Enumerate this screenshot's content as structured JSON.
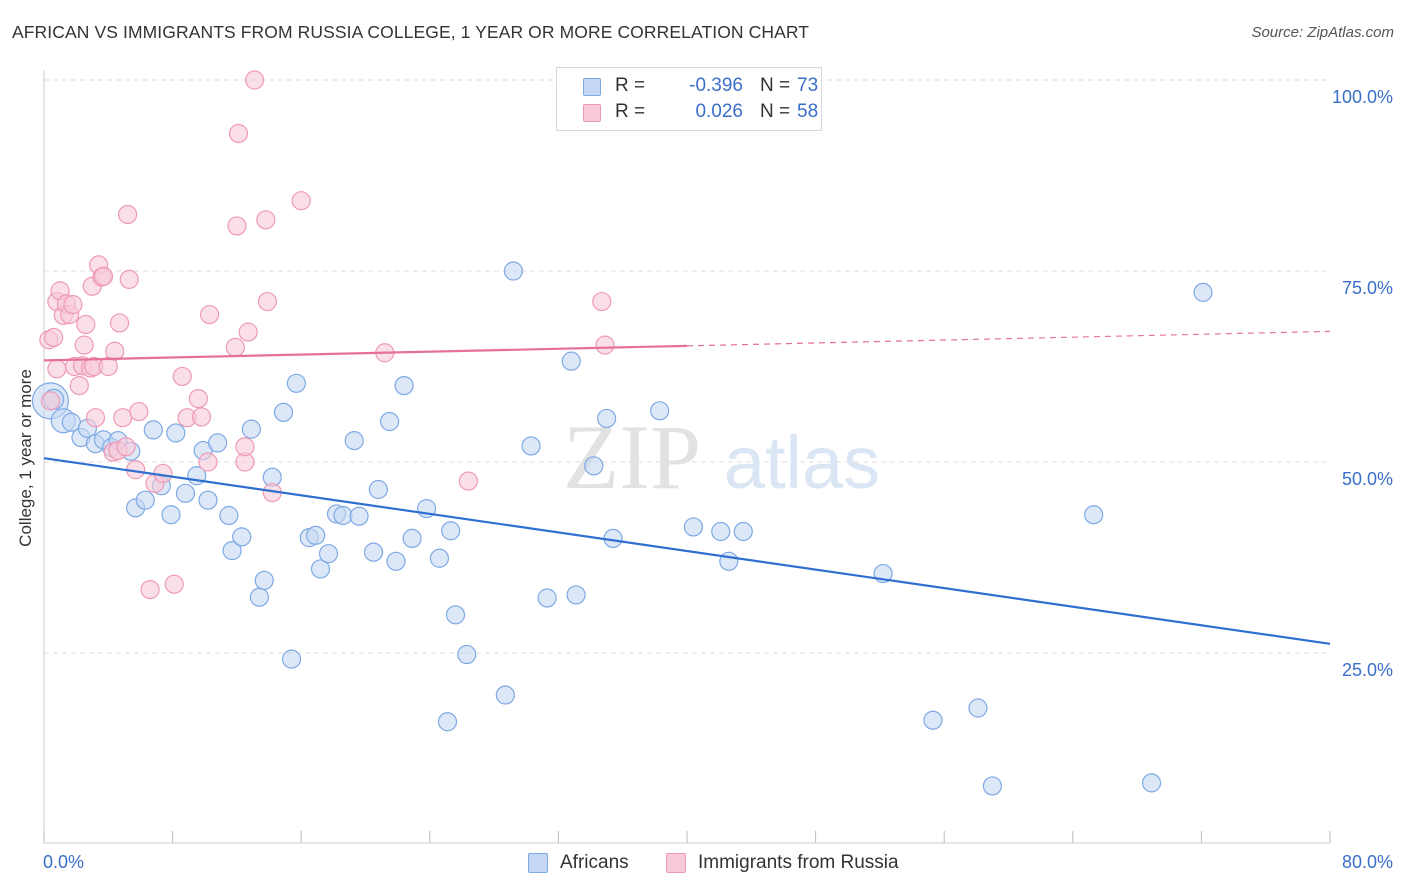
{
  "title": "AFRICAN VS IMMIGRANTS FROM RUSSIA COLLEGE, 1 YEAR OR MORE CORRELATION CHART",
  "source": "Source: ZipAtlas.com",
  "watermark": {
    "zip": "ZIP",
    "atlas": "atlas"
  },
  "legend": {
    "africans": {
      "r_label": "R =",
      "r_value": "-0.396",
      "n_label": "N =",
      "n_value": "73"
    },
    "russia": {
      "r_label": "R =",
      "r_value": "0.026",
      "n_label": "N =",
      "n_value": "58"
    }
  },
  "colors": {
    "africans_fill": "#c5d8f3",
    "africans_stroke": "#7ea9e4",
    "africans_line": "#2f6fd0",
    "russia_fill": "#f8cad9",
    "russia_stroke": "#ee9ab7",
    "russia_line": "#e5719a",
    "grid": "#dddddd",
    "tick_text": "#3a6fc9"
  },
  "chart_data": {
    "type": "scatter",
    "title": "AFRICAN VS IMMIGRANTS FROM RUSSIA COLLEGE, 1 YEAR OR MORE CORRELATION CHART",
    "xlabel": "",
    "ylabel": "College, 1 year or more",
    "xlim": [
      0,
      80
    ],
    "ylim": [
      0,
      104
    ],
    "x_ticks": [
      "0.0%",
      "80.0%"
    ],
    "y_ticks": [
      {
        "value": 25,
        "label": "25.0%"
      },
      {
        "value": 50,
        "label": "50.0%"
      },
      {
        "value": 75,
        "label": "75.0%"
      },
      {
        "value": 100,
        "label": "100.0%"
      }
    ],
    "grid": true,
    "legend_position": "top-center",
    "series": [
      {
        "name": "Africans",
        "r": -0.396,
        "n": 73,
        "trend": {
          "x": [
            0,
            80
          ],
          "y": [
            50.5,
            26.2
          ]
        },
        "points": [
          [
            0.4,
            58.0,
            18
          ],
          [
            0.6,
            58.2,
            10
          ],
          [
            1.2,
            55.4,
            12
          ],
          [
            1.7,
            55.2,
            9
          ],
          [
            2.3,
            53.2,
            9
          ],
          [
            2.7,
            54.4,
            9
          ],
          [
            3.2,
            52.4,
            9
          ],
          [
            3.7,
            52.9,
            9
          ],
          [
            4.2,
            51.9,
            9
          ],
          [
            4.6,
            52.8,
            9
          ],
          [
            5.4,
            51.4,
            9
          ],
          [
            5.7,
            44.0,
            9
          ],
          [
            6.3,
            45.0,
            9
          ],
          [
            6.8,
            54.2,
            9
          ],
          [
            7.3,
            46.9,
            9
          ],
          [
            7.9,
            43.1,
            9
          ],
          [
            8.2,
            53.8,
            9
          ],
          [
            8.8,
            45.9,
            9
          ],
          [
            9.5,
            48.2,
            9
          ],
          [
            9.9,
            51.5,
            9
          ],
          [
            10.2,
            45.0,
            9
          ],
          [
            10.8,
            52.5,
            9
          ],
          [
            11.5,
            43.0,
            9
          ],
          [
            11.7,
            38.4,
            9
          ],
          [
            12.3,
            40.2,
            9
          ],
          [
            12.9,
            54.3,
            9
          ],
          [
            13.4,
            32.3,
            9
          ],
          [
            13.7,
            34.5,
            9
          ],
          [
            14.2,
            48.0,
            9
          ],
          [
            14.9,
            56.5,
            9
          ],
          [
            15.4,
            24.2,
            9
          ],
          [
            15.7,
            60.3,
            9
          ],
          [
            16.5,
            40.1,
            9
          ],
          [
            16.9,
            40.4,
            9
          ],
          [
            17.2,
            36.0,
            9
          ],
          [
            17.7,
            38.0,
            9
          ],
          [
            18.2,
            43.2,
            9
          ],
          [
            18.6,
            43.0,
            9
          ],
          [
            19.3,
            52.8,
            9
          ],
          [
            19.6,
            42.9,
            9
          ],
          [
            20.5,
            38.2,
            9
          ],
          [
            20.8,
            46.4,
            9
          ],
          [
            21.5,
            55.3,
            9
          ],
          [
            21.9,
            37.0,
            9
          ],
          [
            22.4,
            60.0,
            9
          ],
          [
            22.9,
            40.0,
            9
          ],
          [
            23.8,
            43.9,
            9
          ],
          [
            24.6,
            37.4,
            9
          ],
          [
            25.1,
            16.0,
            9
          ],
          [
            25.3,
            41.0,
            9
          ],
          [
            25.6,
            30.0,
            9
          ],
          [
            26.3,
            24.8,
            9
          ],
          [
            28.7,
            19.5,
            9
          ],
          [
            29.2,
            75.0,
            9
          ],
          [
            30.3,
            52.1,
            9
          ],
          [
            31.3,
            32.2,
            9
          ],
          [
            32.8,
            63.2,
            9
          ],
          [
            33.1,
            32.6,
            9
          ],
          [
            34.2,
            49.5,
            9
          ],
          [
            35.0,
            55.7,
            9
          ],
          [
            35.4,
            40.0,
            9
          ],
          [
            38.3,
            56.7,
            9
          ],
          [
            40.4,
            41.5,
            9
          ],
          [
            42.1,
            40.9,
            9
          ],
          [
            42.6,
            37.0,
            9
          ],
          [
            43.5,
            40.9,
            9
          ],
          [
            52.2,
            35.4,
            9
          ],
          [
            55.3,
            16.2,
            9
          ],
          [
            58.1,
            17.8,
            9
          ],
          [
            59.0,
            7.6,
            9
          ],
          [
            65.3,
            43.1,
            9
          ],
          [
            68.9,
            8.0,
            9
          ],
          [
            72.1,
            72.2,
            9
          ]
        ]
      },
      {
        "name": "Immigrants from Russia",
        "r": 0.026,
        "n": 58,
        "trend": {
          "x": [
            0,
            40
          ],
          "y": [
            63.3,
            65.2
          ],
          "dashed_to": {
            "x": 80,
            "y": 67.1
          }
        },
        "points": [
          [
            0.3,
            66.0,
            9
          ],
          [
            0.4,
            58.0,
            9
          ],
          [
            0.6,
            66.3,
            9
          ],
          [
            0.8,
            62.2,
            9
          ],
          [
            0.8,
            71.0,
            9
          ],
          [
            1.0,
            72.4,
            9
          ],
          [
            1.2,
            69.2,
            9
          ],
          [
            1.4,
            70.7,
            9
          ],
          [
            1.6,
            69.3,
            9
          ],
          [
            1.8,
            70.6,
            9
          ],
          [
            1.9,
            62.5,
            9
          ],
          [
            2.2,
            60.0,
            9
          ],
          [
            2.4,
            62.6,
            9
          ],
          [
            2.5,
            65.3,
            9
          ],
          [
            2.6,
            68.0,
            9
          ],
          [
            2.9,
            62.3,
            9
          ],
          [
            3.0,
            73.0,
            9
          ],
          [
            3.1,
            62.5,
            9
          ],
          [
            3.2,
            55.8,
            9
          ],
          [
            3.4,
            75.8,
            9
          ],
          [
            3.6,
            74.2,
            9
          ],
          [
            3.7,
            74.3,
            9
          ],
          [
            4.0,
            62.5,
            9
          ],
          [
            4.3,
            51.3,
            9
          ],
          [
            4.4,
            64.5,
            9
          ],
          [
            4.6,
            51.5,
            9
          ],
          [
            4.7,
            68.2,
            9
          ],
          [
            4.9,
            55.8,
            9
          ],
          [
            5.1,
            52.0,
            9
          ],
          [
            5.2,
            82.4,
            9
          ],
          [
            5.3,
            73.9,
            9
          ],
          [
            5.7,
            49.0,
            9
          ],
          [
            5.9,
            56.6,
            9
          ],
          [
            6.6,
            33.3,
            9
          ],
          [
            6.9,
            47.2,
            9
          ],
          [
            7.4,
            48.5,
            9
          ],
          [
            8.1,
            34.0,
            9
          ],
          [
            8.6,
            61.2,
            9
          ],
          [
            8.9,
            55.8,
            9
          ],
          [
            9.6,
            58.3,
            9
          ],
          [
            9.8,
            55.9,
            9
          ],
          [
            10.2,
            50.0,
            9
          ],
          [
            10.3,
            69.3,
            9
          ],
          [
            11.9,
            65.0,
            9
          ],
          [
            12.0,
            80.9,
            9
          ],
          [
            12.1,
            93.0,
            9
          ],
          [
            12.5,
            50.0,
            9
          ],
          [
            12.5,
            52.0,
            9
          ],
          [
            12.7,
            67.0,
            9
          ],
          [
            13.1,
            100.0,
            9
          ],
          [
            13.9,
            71.0,
            9
          ],
          [
            13.8,
            81.7,
            9
          ],
          [
            14.2,
            46.0,
            9
          ],
          [
            16.0,
            84.2,
            9
          ],
          [
            21.2,
            64.3,
            9
          ],
          [
            26.4,
            47.5,
            9
          ],
          [
            34.7,
            71.0,
            9
          ],
          [
            34.9,
            65.3,
            9
          ]
        ]
      }
    ]
  },
  "bottom_legend": {
    "africans": "Africans",
    "russia": "Immigrants from Russia"
  }
}
